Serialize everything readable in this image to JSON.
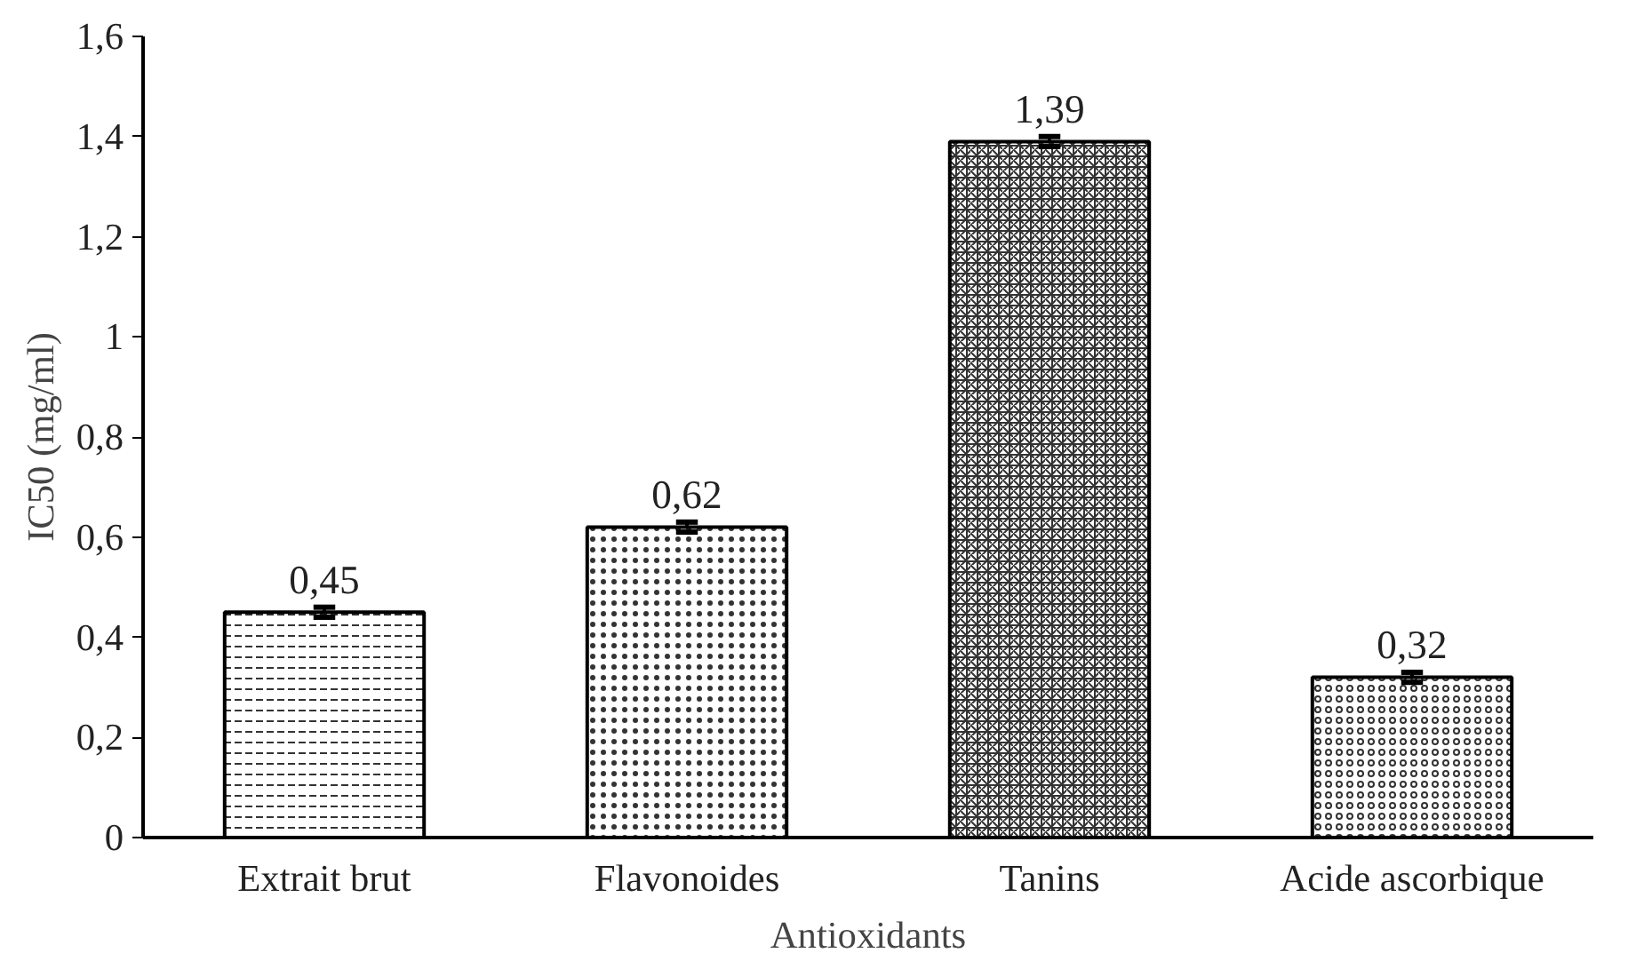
{
  "chart_data": {
    "type": "bar",
    "xlabel": "Antioxidants",
    "ylabel": "IC50 (mg/ml)",
    "categories": [
      "Extrait brut",
      "Flavonoides",
      "Tanins",
      "Acide ascorbique"
    ],
    "values": [
      0.45,
      0.62,
      1.39,
      0.32
    ],
    "errors": [
      0.01,
      0.01,
      0.01,
      0.01
    ],
    "value_labels": [
      "0,45",
      "0,62",
      "1,39",
      "0,32"
    ],
    "ylim": [
      0,
      1.6
    ],
    "yticks": [
      0,
      {
        "value": 0.2,
        "label": "0,2"
      },
      {
        "value": 0.4,
        "label": "0,4"
      },
      {
        "value": 0.6,
        "label": "0,6"
      },
      {
        "value": 0.8,
        "label": "0,8"
      },
      1,
      {
        "value": 1.2,
        "label": "1,2"
      },
      {
        "value": 1.4,
        "label": "1,4"
      },
      {
        "value": 1.6,
        "label": "1,6"
      }
    ],
    "grid": false
  }
}
